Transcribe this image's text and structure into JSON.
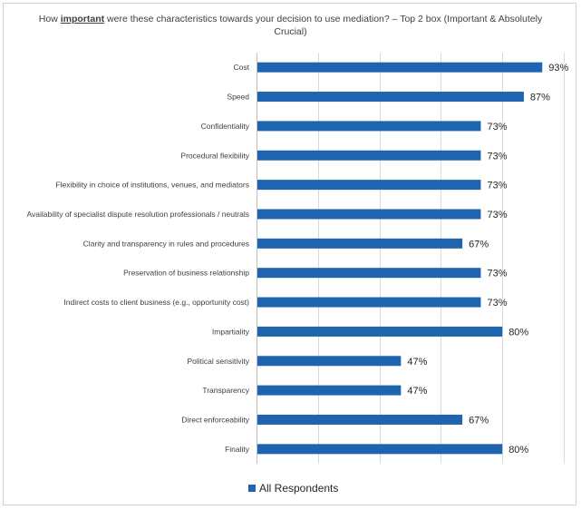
{
  "chart_data": {
    "type": "bar",
    "orientation": "horizontal",
    "title": {
      "prefix": "How ",
      "emphasis": "important",
      "suffix": " were these characteristics towards your decision to use mediation? – Top 2 box (Important & Absolutely Crucial)"
    },
    "categories": [
      "Cost",
      "Speed",
      "Confidentiality",
      "Procedural flexibility",
      "Flexibility in choice of institutions, venues, and mediators",
      "Availability of specialist dispute resolution professionals / neutrals",
      "Clarity and transparency in rules and procedures",
      "Preservation of business relationship",
      "Indirect costs to client business (e.g., opportunity cost)",
      "Impartiality",
      "Political sensitivity",
      "Transparency",
      "Direct enforceability",
      "Finality"
    ],
    "series": [
      {
        "name": "All Respondents",
        "values": [
          93,
          87,
          73,
          73,
          73,
          73,
          67,
          73,
          73,
          80,
          47,
          47,
          67,
          80
        ],
        "labels": [
          "93%",
          "87%",
          "73%",
          "73%",
          "73%",
          "73%",
          "67%",
          "73%",
          "73%",
          "80%",
          "47%",
          "47%",
          "67%",
          "80%"
        ]
      }
    ],
    "xlim": [
      0,
      100
    ],
    "grid": true,
    "legend_position": "bottom",
    "color": "#1f64ae"
  }
}
